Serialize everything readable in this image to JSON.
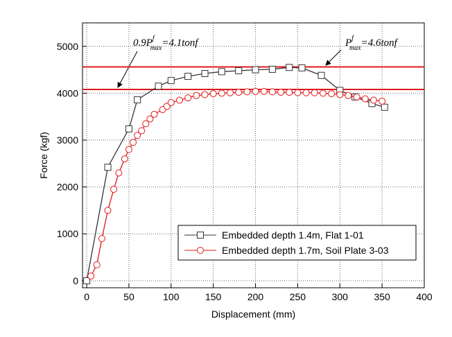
{
  "chart_data": {
    "type": "line",
    "x_label": "Displacement (mm)",
    "y_label": "Force (kgf)",
    "xlim": [
      -5,
      400
    ],
    "ylim": [
      -150,
      5500
    ],
    "xticks": [
      0,
      50,
      100,
      150,
      200,
      250,
      300,
      350,
      400
    ],
    "yticks": [
      0,
      1000,
      2000,
      3000,
      4000,
      5000
    ],
    "grid": true,
    "reference_lines": [
      {
        "value": 4560,
        "color": "#e0191b",
        "label_parts": [
          "P",
          "f",
          "max",
          "=4.6tonf"
        ]
      },
      {
        "value": 4080,
        "color": "#e0191b",
        "label_parts": [
          "0.9P",
          "f",
          "max",
          "=4.1tonf"
        ]
      }
    ],
    "series": [
      {
        "name": "Embedded depth 1.4m, Flat 1-01",
        "color": "#333333",
        "marker": "square",
        "x": [
          0,
          25,
          50,
          60,
          85,
          100,
          120,
          140,
          160,
          180,
          200,
          220,
          240,
          255,
          278,
          300,
          318,
          338,
          353
        ],
        "values": [
          0,
          2420,
          3240,
          3860,
          4150,
          4270,
          4360,
          4420,
          4460,
          4480,
          4500,
          4510,
          4550,
          4540,
          4380,
          4060,
          3920,
          3780,
          3700
        ]
      },
      {
        "name": "Embedded depth 1.7m, Soil Plate 3-03",
        "color": "#e0191b",
        "marker": "circle",
        "x": [
          5,
          12,
          18,
          25,
          32,
          38,
          45,
          50,
          55,
          60,
          65,
          70,
          75,
          80,
          90,
          95,
          100,
          110,
          120,
          130,
          140,
          150,
          160,
          170,
          180,
          190,
          200,
          210,
          220,
          230,
          240,
          250,
          260,
          270,
          280,
          290,
          300,
          310,
          320,
          330,
          340,
          350
        ],
        "values": [
          100,
          340,
          900,
          1500,
          1950,
          2300,
          2600,
          2800,
          2950,
          3100,
          3200,
          3350,
          3450,
          3550,
          3650,
          3720,
          3800,
          3850,
          3900,
          3950,
          3970,
          3990,
          4000,
          4010,
          4020,
          4030,
          4040,
          4040,
          4030,
          4020,
          4020,
          4010,
          4010,
          4010,
          4000,
          3990,
          3970,
          3950,
          3920,
          3880,
          3850,
          3830
        ]
      }
    ]
  }
}
